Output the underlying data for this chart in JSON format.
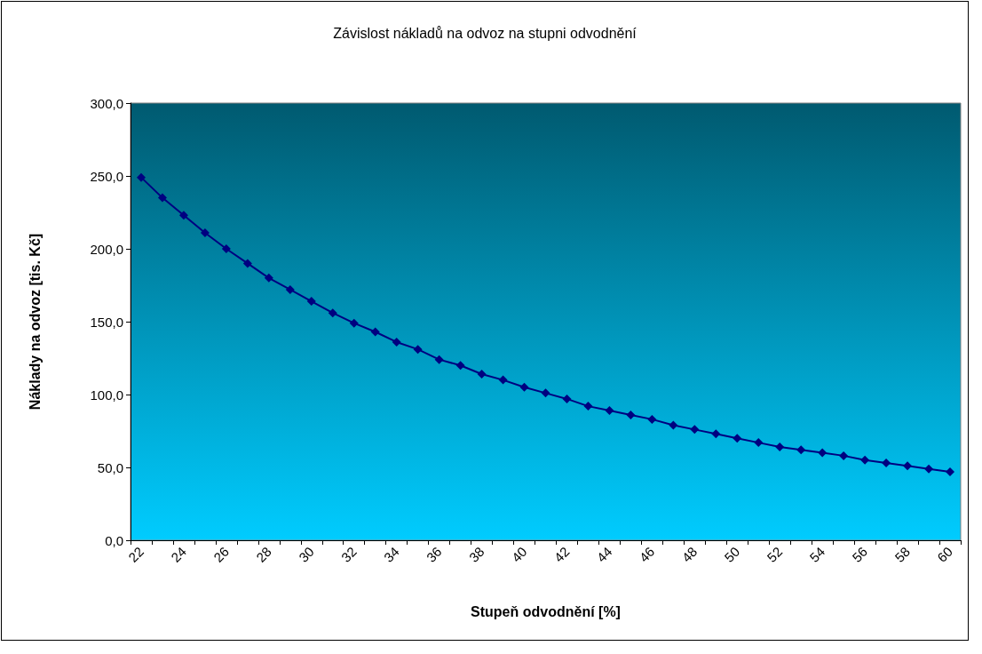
{
  "chart_data": {
    "type": "line",
    "title": "Závislost nákladů na odvoz na stupni odvodnění",
    "xlabel": "Stupeň odvodnění [%]",
    "ylabel": "Náklady na odvoz [tis. Kč]",
    "categories": [
      "22",
      null,
      "24",
      null,
      "26",
      null,
      "28",
      null,
      "30",
      null,
      "32",
      null,
      "34",
      null,
      "36",
      null,
      "38",
      null,
      "40",
      null,
      "42",
      null,
      "44",
      null,
      "46",
      null,
      "48",
      null,
      "50",
      null,
      "52",
      null,
      "54",
      null,
      "56",
      null,
      "58",
      null,
      "60"
    ],
    "series": [
      {
        "color": "#000080",
        "values": [
          249,
          235,
          223,
          211,
          200,
          190,
          180,
          172,
          164,
          156,
          149,
          143,
          136,
          131,
          124,
          120,
          114,
          110,
          105,
          101,
          97,
          92,
          89,
          86,
          83,
          79,
          76,
          73,
          70,
          67,
          64,
          62,
          60,
          58,
          55,
          53,
          51,
          49,
          47
        ]
      }
    ],
    "ylim": [
      0,
      300
    ],
    "yticks": [
      {
        "value": 0,
        "label": "0,0"
      },
      {
        "value": 50,
        "label": "50,0"
      },
      {
        "value": 100,
        "label": "100,0"
      },
      {
        "value": 150,
        "label": "150,0"
      },
      {
        "value": 200,
        "label": "200,0"
      },
      {
        "value": 250,
        "label": "250,0"
      },
      {
        "value": 300,
        "label": "300,0"
      }
    ],
    "grid": false,
    "marker": "diamond",
    "line_style": "solid"
  }
}
